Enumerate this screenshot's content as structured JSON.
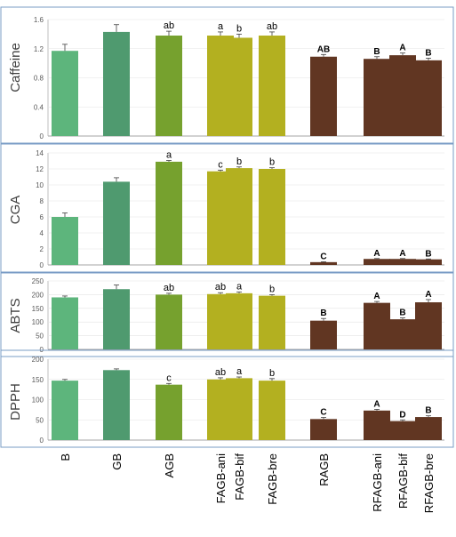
{
  "chart_data": [
    {
      "type": "bar",
      "ylabel": "Caffeine",
      "ylim": [
        0,
        1.6
      ],
      "yticks": [
        "0",
        "0.4",
        "0.8",
        "1.2",
        "1.6"
      ],
      "categories": [
        "B",
        "GB",
        "AGB",
        "FAGB-ani",
        "FAGB-bif",
        "FAGB-bre",
        "RAGB",
        "RFAGB-ani",
        "RFAGB-bif",
        "RFAGB-bre"
      ],
      "values": [
        1.17,
        1.43,
        1.38,
        1.38,
        1.35,
        1.38,
        1.09,
        1.06,
        1.11,
        1.04
      ],
      "errors": [
        0.09,
        0.1,
        0.06,
        0.05,
        0.05,
        0.05,
        0.03,
        0.03,
        0.03,
        0.03
      ],
      "labels": [
        "",
        "",
        "ab",
        "a",
        "b",
        "ab",
        "AB",
        "B",
        "A",
        "B"
      ]
    },
    {
      "type": "bar",
      "ylabel": "CGA",
      "ylim": [
        0,
        14
      ],
      "yticks": [
        "0",
        "2",
        "4",
        "6",
        "8",
        "10",
        "12",
        "14"
      ],
      "categories": [
        "B",
        "GB",
        "AGB",
        "FAGB-ani",
        "FAGB-bif",
        "FAGB-bre",
        "RAGB",
        "RFAGB-ani",
        "RFAGB-bif",
        "RFAGB-bre"
      ],
      "values": [
        6.0,
        10.4,
        12.9,
        11.7,
        12.1,
        12.0,
        0.35,
        0.75,
        0.75,
        0.7
      ],
      "errors": [
        0.5,
        0.5,
        0.15,
        0.15,
        0.15,
        0.15,
        0.05,
        0.05,
        0.05,
        0.05
      ],
      "labels": [
        "",
        "",
        "a",
        "c",
        "b",
        "b",
        "C",
        "A",
        "A",
        "B"
      ]
    },
    {
      "type": "bar",
      "ylabel": "ABTS",
      "ylim": [
        0,
        250
      ],
      "yticks": [
        "0",
        "50",
        "100",
        "150",
        "200",
        "250"
      ],
      "categories": [
        "B",
        "GB",
        "AGB",
        "FAGB-ani",
        "FAGB-bif",
        "FAGB-bre",
        "RAGB",
        "RFAGB-ani",
        "RFAGB-bif",
        "RFAGB-bre"
      ],
      "values": [
        190,
        220,
        200,
        202,
        205,
        196,
        105,
        170,
        110,
        172
      ],
      "errors": [
        5,
        15,
        5,
        5,
        5,
        4,
        8,
        5,
        5,
        10
      ],
      "labels": [
        "",
        "",
        "ab",
        "ab",
        "a",
        "b",
        "B",
        "A",
        "B",
        "A"
      ]
    },
    {
      "type": "bar",
      "ylabel": "DPPH",
      "ylim": [
        0,
        200
      ],
      "yticks": [
        "0",
        "50",
        "100",
        "150",
        "200"
      ],
      "categories": [
        "B",
        "GB",
        "AGB",
        "FAGB-ani",
        "FAGB-bif",
        "FAGB-bre",
        "RAGB",
        "RFAGB-ani",
        "RFAGB-bif",
        "RFAGB-bre"
      ],
      "values": [
        147,
        173,
        137,
        150,
        153,
        147,
        52,
        73,
        47,
        57
      ],
      "errors": [
        3,
        3,
        3,
        4,
        3,
        5,
        4,
        3,
        3,
        3
      ],
      "labels": [
        "",
        "",
        "c",
        "ab",
        "a",
        "b",
        "C",
        "A",
        "D",
        "B"
      ]
    }
  ],
  "colors": [
    "#5db57c",
    "#4f9a6f",
    "#76a12e",
    "#b3b020",
    "#b3b020",
    "#b3b020",
    "#613622",
    "#613622",
    "#613622",
    "#613622"
  ]
}
